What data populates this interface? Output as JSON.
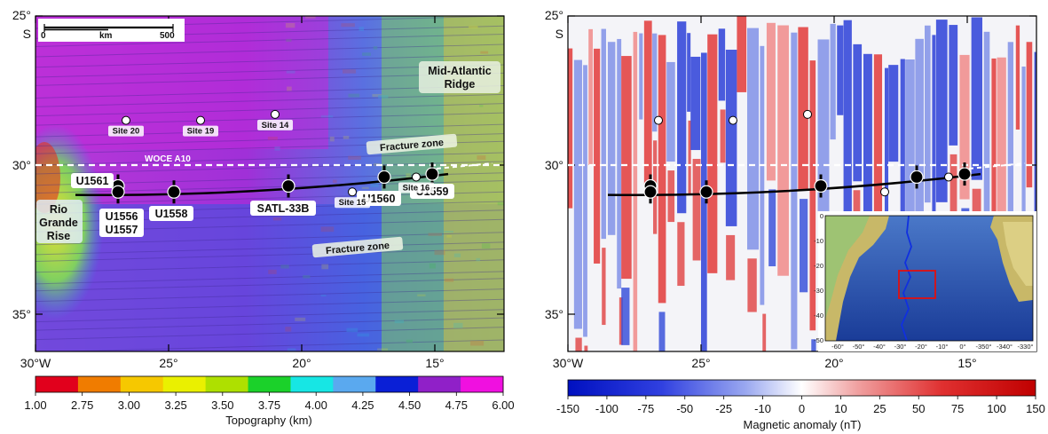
{
  "left_map": {
    "lat_labels": [
      "25°",
      "S",
      "30°",
      "35°"
    ],
    "lon_labels": [
      "30°W",
      "25°",
      "20°",
      "15°"
    ],
    "scale": {
      "zero": "0",
      "unit": "km",
      "max": "500"
    },
    "features": {
      "mar_line1": "Mid-Atlantic",
      "mar_line2": "Ridge",
      "rgr_line1": "Rio",
      "rgr_line2": "Grande",
      "rgr_line3": "Rise",
      "fz_north": "Fracture zone",
      "fz_south": "Fracture zone",
      "woce": "WOCE A10"
    },
    "drill_sites": [
      {
        "name": "Site 20",
        "lon": -26.6,
        "lat": -28.5
      },
      {
        "name": "Site 19",
        "lon": -23.8,
        "lat": -28.5
      },
      {
        "name": "Site 14",
        "lon": -21.0,
        "lat": -28.3
      },
      {
        "name": "Site 15",
        "lon": -18.1,
        "lat": -30.9
      },
      {
        "name": "Site 16",
        "lon": -15.7,
        "lat": -30.4
      }
    ],
    "expedition_sites": [
      {
        "name": "U1561",
        "lon": -26.9,
        "lat": -30.7
      },
      {
        "name": "U1556",
        "lon": -26.9,
        "lat": -30.9
      },
      {
        "name": "U1557",
        "lon": -26.9,
        "lat": -30.9
      },
      {
        "name": "U1558",
        "lon": -24.8,
        "lat": -30.9
      },
      {
        "name": "SATL-33B",
        "lon": -20.5,
        "lat": -30.7
      },
      {
        "name": "U1560",
        "lon": -16.9,
        "lat": -30.4
      },
      {
        "name": "U1559",
        "lon": -15.1,
        "lat": -30.3
      }
    ],
    "colorbar": {
      "ticks": [
        "1.00",
        "2.75",
        "3.00",
        "3.25",
        "3.50",
        "3.75",
        "4.00",
        "4.25",
        "4.50",
        "4.75",
        "6.00"
      ],
      "colors": [
        "#e1001c",
        "#f07c00",
        "#f6c800",
        "#eaf000",
        "#aee000",
        "#1bd12a",
        "#17e6e4",
        "#5aa9ef",
        "#0a1fd6",
        "#9020c8",
        "#f010e0"
      ],
      "label": "Topography (km)"
    }
  },
  "right_map": {
    "lat_labels": [
      "25°",
      "S",
      "30°",
      "35°"
    ],
    "lon_labels": [
      "30°W",
      "25°",
      "20°",
      "15°"
    ],
    "inset": {
      "y_ticks": [
        "0",
        "-10",
        "-20",
        "-30",
        "-40",
        "-50"
      ],
      "x_ticks": [
        "-60°",
        "-50°",
        "-40°",
        "-30°",
        "-20°",
        "-10°",
        "0°",
        "-350°",
        "-340°",
        "-330°"
      ]
    },
    "colorbar": {
      "ticks": [
        "-150",
        "-100",
        "-75",
        "-50",
        "-25",
        "-10",
        "0",
        "10",
        "25",
        "50",
        "75",
        "100",
        "150"
      ],
      "label": "Magnetic anomaly (nT)"
    }
  },
  "colors": {
    "track": "#000000",
    "woce_line": "#ffffff",
    "inset_box": "#e01010",
    "ridge_line": "#1030e0"
  }
}
